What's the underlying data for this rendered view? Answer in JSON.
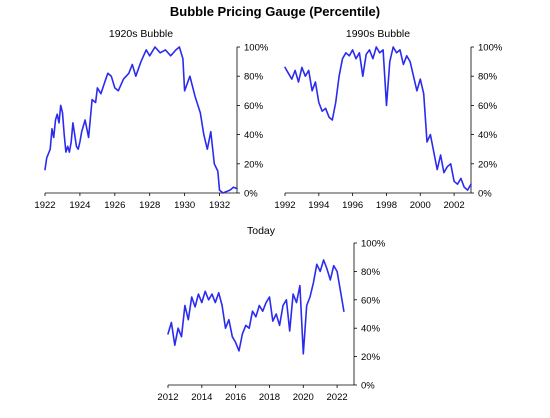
{
  "title": "Bubble Pricing Gauge (Percentile)",
  "chart_data": [
    {
      "type": "line",
      "title": "1920s Bubble",
      "xlim": [
        1922,
        1933
      ],
      "ylim": [
        0,
        100
      ],
      "xticks": [
        "1922",
        "1924",
        "1926",
        "1928",
        "1930",
        "1932"
      ],
      "yticks": [
        "0%",
        "20%",
        "40%",
        "60%",
        "80%",
        "100%"
      ],
      "line_color": "#2b2bf0",
      "x": [
        1922.0,
        1922.1,
        1922.3,
        1922.4,
        1922.5,
        1922.6,
        1922.7,
        1922.8,
        1922.9,
        1923.0,
        1923.1,
        1923.2,
        1923.3,
        1923.4,
        1923.5,
        1923.6,
        1923.7,
        1923.8,
        1923.9,
        1924.0,
        1924.1,
        1924.3,
        1924.5,
        1924.7,
        1924.9,
        1925.0,
        1925.2,
        1925.4,
        1925.6,
        1925.8,
        1926.0,
        1926.2,
        1926.5,
        1926.8,
        1927.0,
        1927.2,
        1927.5,
        1927.8,
        1928.0,
        1928.3,
        1928.6,
        1928.9,
        1929.2,
        1929.5,
        1929.7,
        1929.9,
        1930.0,
        1930.3,
        1930.6,
        1930.9,
        1931.1,
        1931.3,
        1931.5,
        1931.7,
        1931.9,
        1932.0,
        1932.2,
        1932.4,
        1932.6,
        1932.8,
        1933.0
      ],
      "y": [
        16,
        24,
        30,
        44,
        38,
        50,
        54,
        48,
        60,
        55,
        40,
        28,
        32,
        28,
        35,
        48,
        40,
        32,
        30,
        35,
        42,
        50,
        38,
        64,
        62,
        72,
        68,
        75,
        82,
        80,
        72,
        70,
        78,
        82,
        88,
        80,
        90,
        98,
        94,
        100,
        96,
        98,
        94,
        98,
        100,
        92,
        70,
        80,
        66,
        55,
        40,
        30,
        42,
        20,
        15,
        2,
        0,
        1,
        2,
        4,
        3
      ]
    },
    {
      "type": "line",
      "title": "1990s Bubble",
      "xlim": [
        1992,
        2003
      ],
      "ylim": [
        0,
        100
      ],
      "xticks": [
        "1992",
        "1994",
        "1996",
        "1998",
        "2000",
        "2002"
      ],
      "yticks": [
        "0%",
        "20%",
        "40%",
        "60%",
        "80%",
        "100%"
      ],
      "line_color": "#2b2bf0",
      "x": [
        1992.0,
        1992.2,
        1992.4,
        1992.6,
        1992.8,
        1993.0,
        1993.2,
        1993.4,
        1993.6,
        1993.8,
        1994.0,
        1994.2,
        1994.4,
        1994.6,
        1994.8,
        1995.0,
        1995.2,
        1995.4,
        1995.6,
        1995.8,
        1996.0,
        1996.2,
        1996.4,
        1996.6,
        1996.8,
        1997.0,
        1997.2,
        1997.4,
        1997.6,
        1997.8,
        1998.0,
        1998.2,
        1998.4,
        1998.6,
        1998.8,
        1999.0,
        1999.2,
        1999.4,
        1999.6,
        1999.8,
        2000.0,
        2000.2,
        2000.4,
        2000.6,
        2000.8,
        2001.0,
        2001.2,
        2001.4,
        2001.6,
        2001.8,
        2002.0,
        2002.2,
        2002.4,
        2002.6,
        2002.8,
        2003.0
      ],
      "y": [
        86,
        82,
        78,
        84,
        76,
        86,
        80,
        84,
        70,
        76,
        62,
        56,
        58,
        52,
        50,
        62,
        80,
        92,
        96,
        94,
        98,
        92,
        96,
        80,
        95,
        98,
        92,
        100,
        96,
        98,
        60,
        90,
        100,
        96,
        98,
        88,
        94,
        90,
        80,
        70,
        78,
        68,
        35,
        40,
        28,
        16,
        26,
        14,
        18,
        20,
        8,
        6,
        10,
        4,
        2,
        6
      ]
    },
    {
      "type": "line",
      "title": "Today",
      "xlim": [
        2012,
        2023
      ],
      "ylim": [
        0,
        100
      ],
      "xticks": [
        "2012",
        "2014",
        "2016",
        "2018",
        "2020",
        "2022"
      ],
      "yticks": [
        "0%",
        "20%",
        "40%",
        "60%",
        "80%",
        "100%"
      ],
      "line_color": "#2b2bf0",
      "x": [
        2012.0,
        2012.2,
        2012.4,
        2012.6,
        2012.8,
        2013.0,
        2013.2,
        2013.4,
        2013.6,
        2013.8,
        2014.0,
        2014.2,
        2014.4,
        2014.6,
        2014.8,
        2015.0,
        2015.2,
        2015.4,
        2015.6,
        2015.8,
        2016.0,
        2016.2,
        2016.4,
        2016.6,
        2016.8,
        2017.0,
        2017.2,
        2017.4,
        2017.6,
        2017.8,
        2018.0,
        2018.2,
        2018.4,
        2018.6,
        2018.8,
        2019.0,
        2019.2,
        2019.4,
        2019.6,
        2019.8,
        2020.0,
        2020.2,
        2020.4,
        2020.6,
        2020.8,
        2021.0,
        2021.2,
        2021.4,
        2021.6,
        2021.8,
        2022.0,
        2022.2,
        2022.4
      ],
      "y": [
        36,
        44,
        28,
        40,
        34,
        56,
        46,
        62,
        55,
        64,
        58,
        66,
        60,
        64,
        58,
        65,
        56,
        40,
        46,
        34,
        30,
        24,
        36,
        42,
        40,
        52,
        48,
        56,
        52,
        58,
        62,
        45,
        50,
        42,
        56,
        60,
        38,
        64,
        58,
        70,
        22,
        56,
        62,
        72,
        85,
        80,
        88,
        82,
        74,
        84,
        80,
        66,
        52
      ]
    }
  ]
}
